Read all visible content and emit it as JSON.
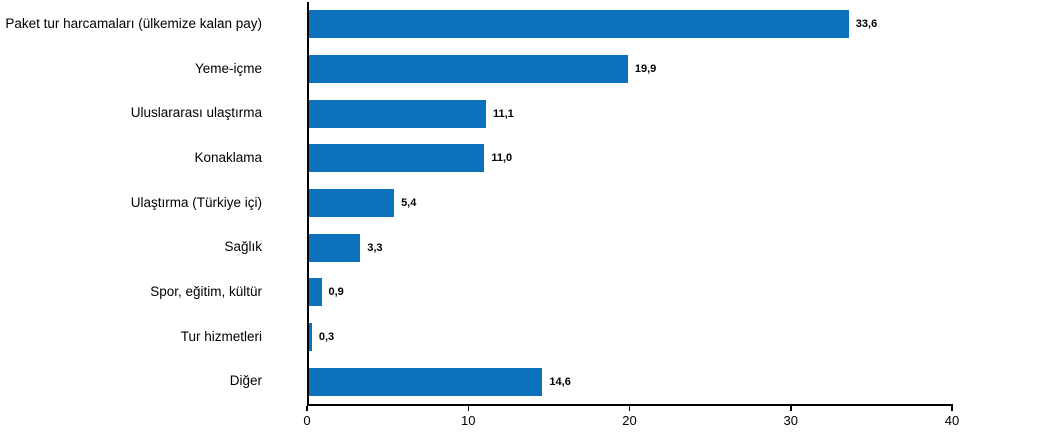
{
  "chart_data": {
    "type": "bar",
    "orientation": "horizontal",
    "title": "",
    "xlabel": "",
    "ylabel": "",
    "categories": [
      "Paket tur harcamaları (ülkemize kalan pay)",
      "Yeme-içme",
      "Uluslararası ulaştırma",
      "Konaklama",
      "Ulaştırma (Türkiye içi)",
      "Sağlık",
      "Spor, eğitim, kültür",
      "Tur hizmetleri",
      "Diğer"
    ],
    "values": [
      33.6,
      19.9,
      11.1,
      11.0,
      5.4,
      3.3,
      0.9,
      0.3,
      14.6
    ],
    "value_labels": [
      "33,6",
      "19,9",
      "11,1",
      "11,0",
      "5,4",
      "3,3",
      "0,9",
      "0,3",
      "14,6"
    ],
    "xlim": [
      0,
      40
    ],
    "x_ticks": [
      0,
      10,
      20,
      30,
      40
    ],
    "x_tick_labels": [
      "0",
      "10",
      "20",
      "30",
      "40"
    ],
    "grid": false,
    "legend": false,
    "bar_color": "#0d71bc",
    "axis_color": "#000000",
    "text_color": "#000000"
  }
}
